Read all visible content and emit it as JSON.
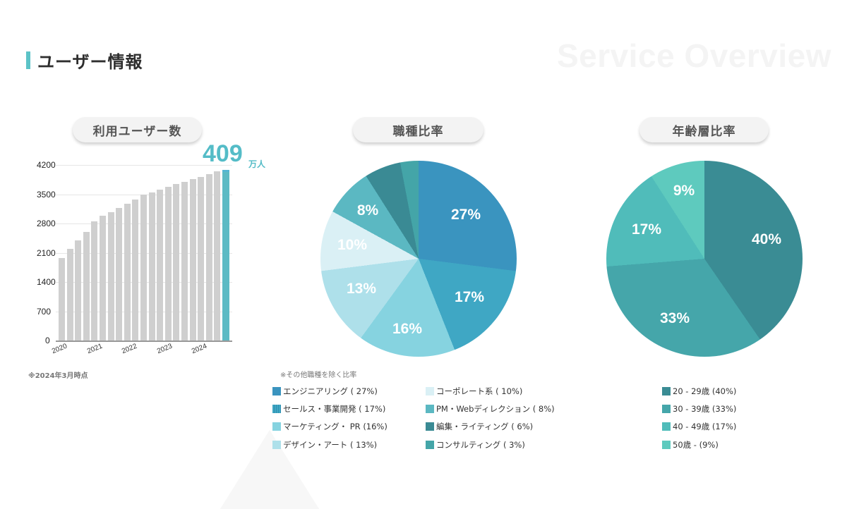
{
  "header": {
    "title": "ユーザー情報",
    "watermark": "Service Overview",
    "accent_color": "#5cc3c7"
  },
  "sections": {
    "users": {
      "label": "利用ユーザー数"
    },
    "occupation": {
      "label": "職種比率"
    },
    "age": {
      "label": "年齢層比率"
    }
  },
  "users_chart": {
    "highlight_value": "409",
    "highlight_unit": "万人",
    "note": "※2024年3月時点",
    "y_ticks": [
      "4200",
      "3500",
      "2800",
      "2100",
      "1400",
      "700",
      "0"
    ],
    "x_ticks": [
      "2020",
      "2021",
      "2022",
      "2023",
      "2024"
    ]
  },
  "occupation_chart": {
    "note": "※その他職種を除く比率",
    "slices": [
      {
        "label": "27%",
        "legend": "エンジニアリング ( 27%)",
        "color": "#3a94bf"
      },
      {
        "label": "17%",
        "legend": "セールス・事業開発 ( 17%)",
        "color": "#3fa7c4"
      },
      {
        "label": "16%",
        "legend": "マーケティング・ PR (16%)",
        "color": "#86d3e0"
      },
      {
        "label": "13%",
        "legend": "デザイン・アート ( 13%)",
        "color": "#aee0ea"
      },
      {
        "label": "10%",
        "legend": "コーポレート系 ( 10%)",
        "color": "#daf0f5"
      },
      {
        "label": "8%",
        "legend": "PM・Webディレクション ( 8%)",
        "color": "#5bb8c2"
      },
      {
        "label": "",
        "legend": "編集・ライティング ( 6%)",
        "color": "#3a8a94"
      },
      {
        "label": "",
        "legend": "コンサルティング ( 3%)",
        "color": "#44a5a8"
      }
    ]
  },
  "age_chart": {
    "slices": [
      {
        "label": "40%",
        "legend": "20 - 29歳 (40%)",
        "color": "#3a8c94"
      },
      {
        "label": "33%",
        "legend": "30 - 39歳 (33%)",
        "color": "#45a6aa"
      },
      {
        "label": "17%",
        "legend": "40 - 49歳 (17%)",
        "color": "#50bcba"
      },
      {
        "label": "9%",
        "legend": "50歳 - (9%)",
        "color": "#5ecabe"
      }
    ]
  },
  "chart_data": [
    {
      "type": "bar",
      "title": "利用ユーザー数",
      "xlabel": "",
      "ylabel": "",
      "ylim": [
        0,
        4200
      ],
      "y_ticks": [
        0,
        700,
        1400,
        2100,
        2800,
        3500,
        4200
      ],
      "x_tick_labels": [
        "2020",
        "2021",
        "2022",
        "2023",
        "2024"
      ],
      "grid": true,
      "values": [
        1970,
        2190,
        2390,
        2600,
        2850,
        2990,
        3070,
        3170,
        3270,
        3370,
        3490,
        3540,
        3610,
        3680,
        3750,
        3800,
        3865,
        3920,
        3985,
        4050,
        4090
      ],
      "highlight_index": 20,
      "annotation": "409万人",
      "note": "※2024年3月時点"
    },
    {
      "type": "pie",
      "title": "職種比率",
      "labels": [
        "エンジニアリング",
        "セールス・事業開発",
        "マーケティング・PR",
        "デザイン・アート",
        "コーポレート系",
        "PM・Webディレクション",
        "編集・ライティング",
        "コンサルティング"
      ],
      "values": [
        27,
        17,
        16,
        13,
        10,
        8,
        6,
        3
      ],
      "unit": "%",
      "legend_position": "bottom",
      "note": "※その他職種を除く比率"
    },
    {
      "type": "pie",
      "title": "年齢層比率",
      "labels": [
        "20 - 29歳",
        "30 - 39歳",
        "40 - 49歳",
        "50歳 -"
      ],
      "values": [
        40,
        33,
        17,
        9
      ],
      "unit": "%",
      "legend_position": "bottom"
    }
  ]
}
